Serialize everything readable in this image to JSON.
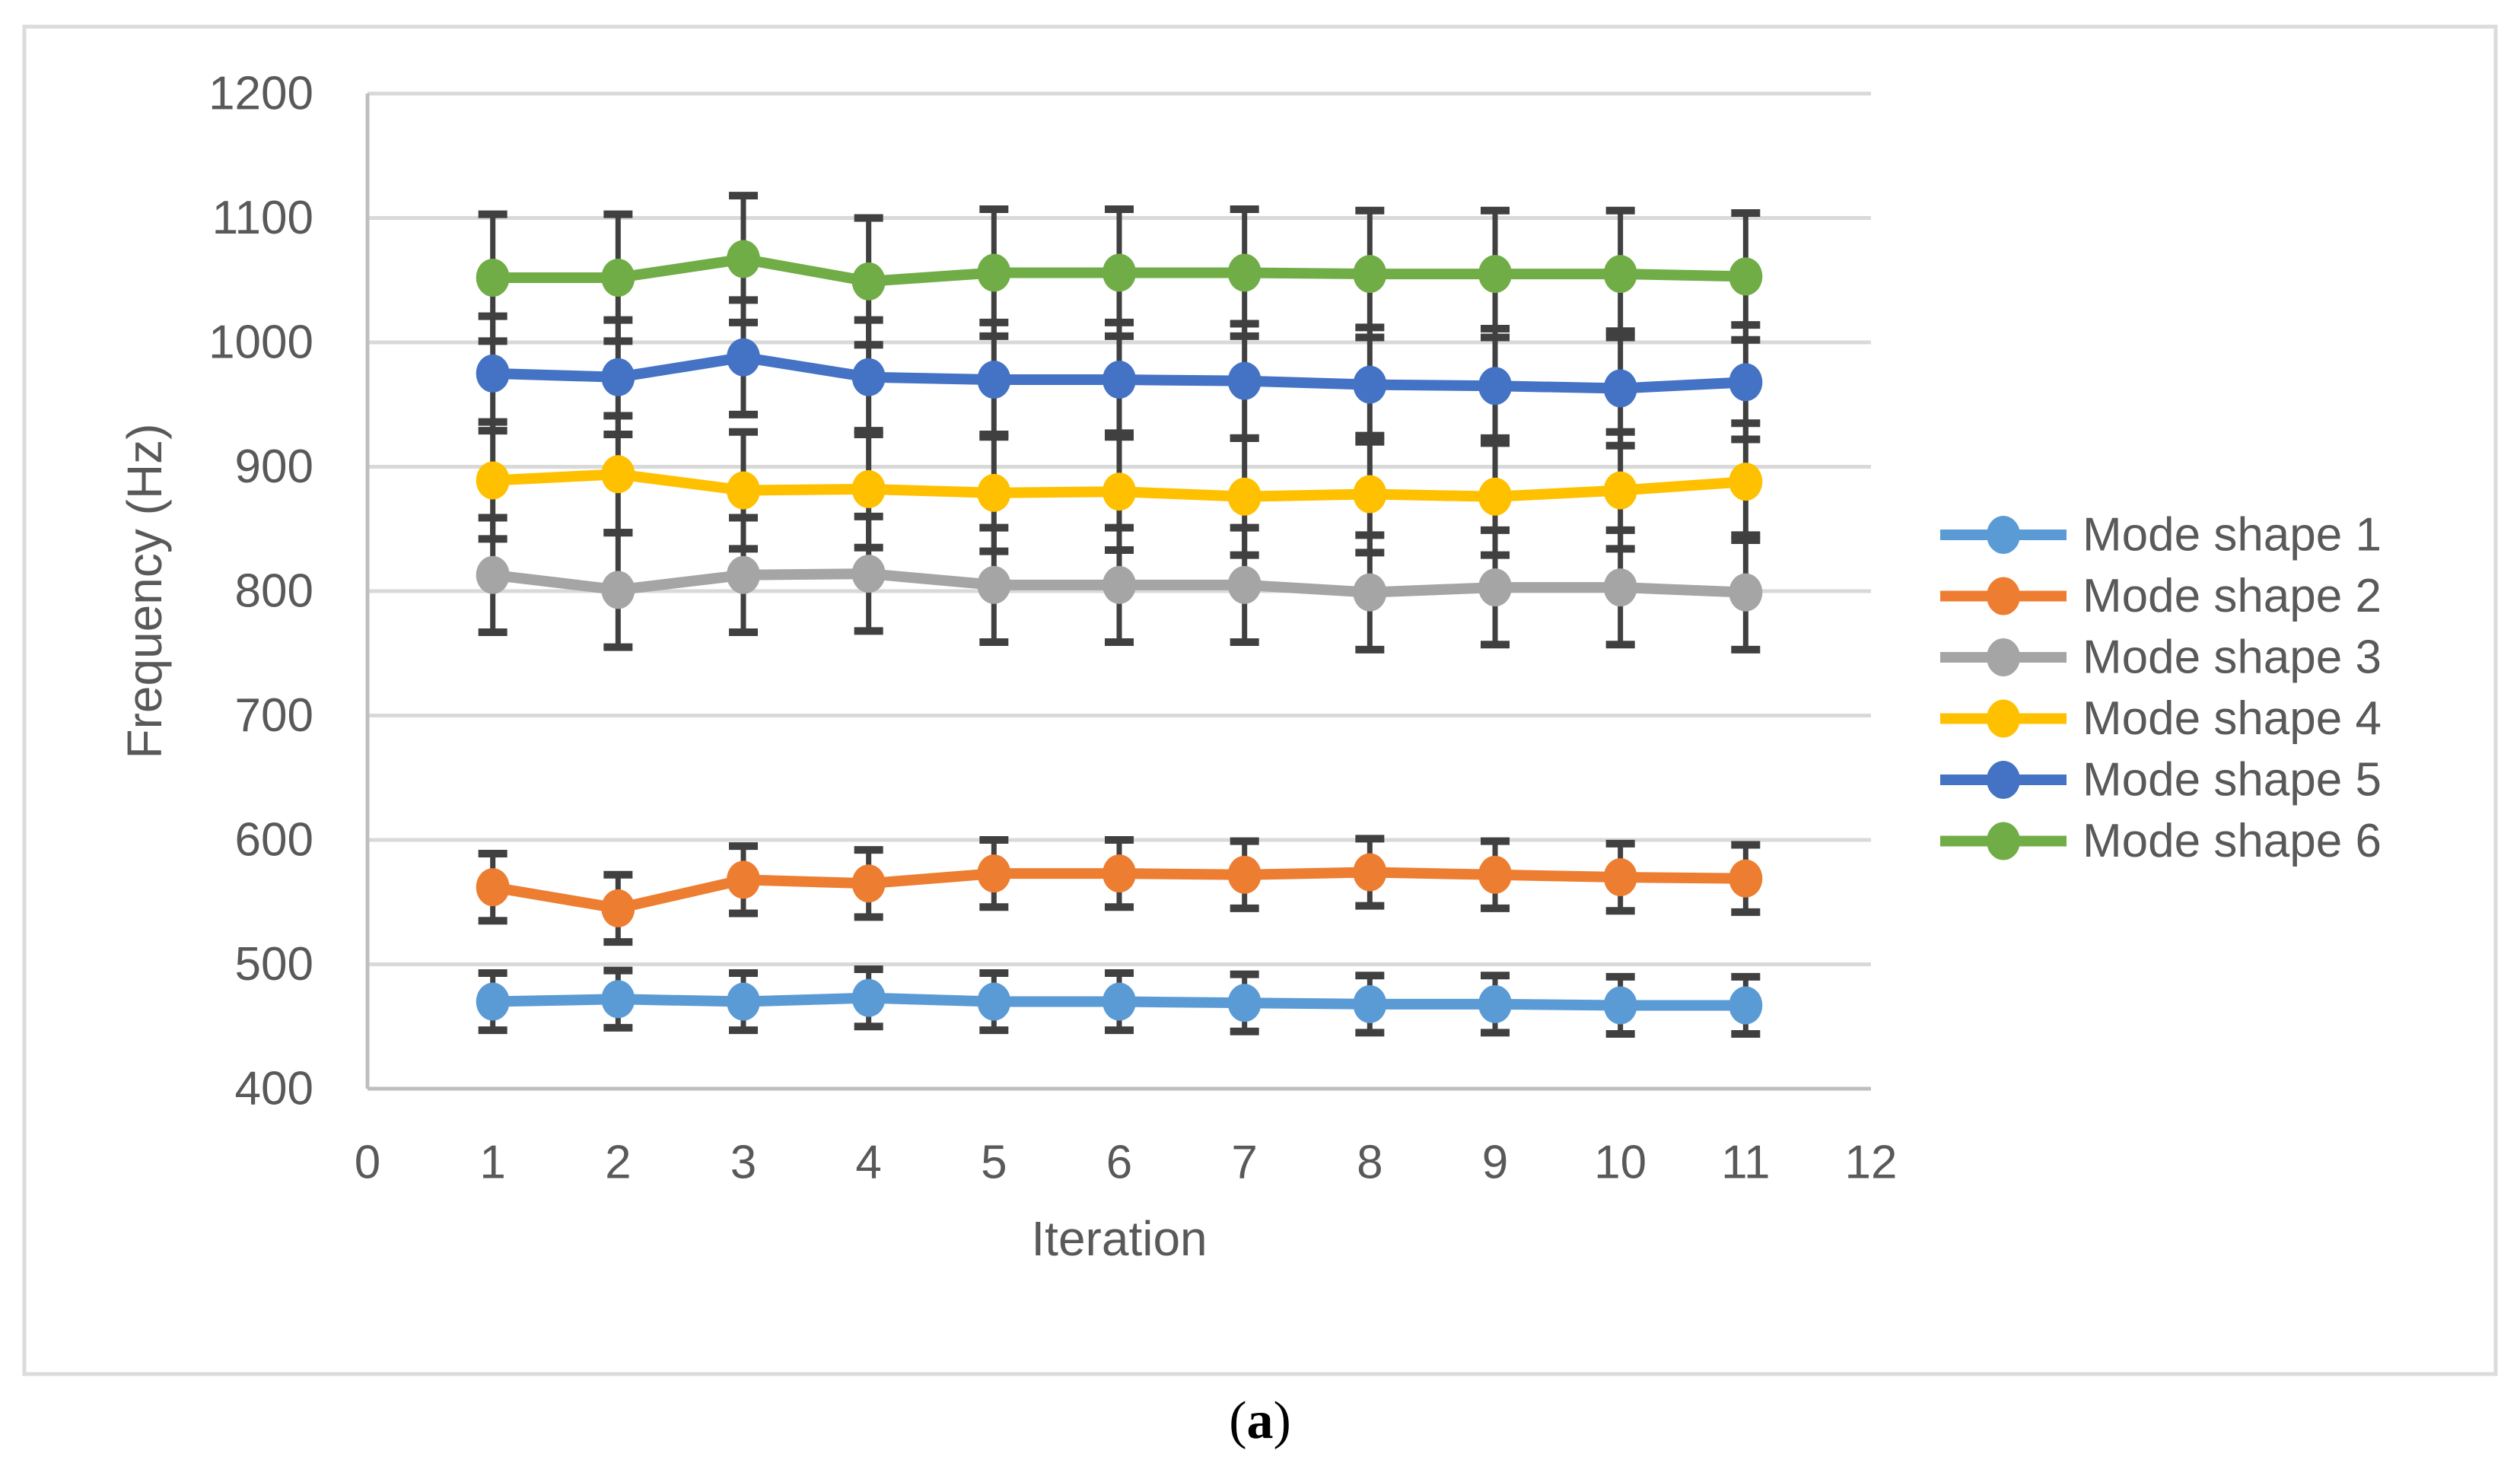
{
  "chart_data": {
    "type": "line",
    "title": "",
    "xlabel": "Iteration",
    "ylabel": "Frequency (Hz)",
    "x": [
      1,
      2,
      3,
      4,
      5,
      6,
      7,
      8,
      9,
      10,
      11
    ],
    "xlim": [
      0,
      12
    ],
    "ylim": [
      400,
      1200
    ],
    "x_ticks": [
      0,
      1,
      2,
      3,
      4,
      5,
      6,
      7,
      8,
      9,
      10,
      11,
      12
    ],
    "y_ticks": [
      400,
      500,
      600,
      700,
      800,
      900,
      1000,
      1100,
      1200
    ],
    "grid": true,
    "legend_position": "right",
    "error_bars": "symmetric, per-series constant, with end caps",
    "series": [
      {
        "name": "Mode shape 1",
        "color": "#5B9BD5",
        "error": 23,
        "values": [
          470,
          472,
          470,
          473,
          470,
          470,
          469,
          468,
          468,
          467,
          467
        ]
      },
      {
        "name": "Mode shape 2",
        "color": "#ED7D31",
        "error": 27,
        "values": [
          562,
          545,
          568,
          565,
          573,
          573,
          572,
          574,
          572,
          570,
          569
        ]
      },
      {
        "name": "Mode shape 3",
        "color": "#A5A5A5",
        "error": 46,
        "values": [
          813,
          801,
          813,
          814,
          805,
          805,
          805,
          799,
          803,
          803,
          799
        ]
      },
      {
        "name": "Mode shape 4",
        "color": "#FFC000",
        "error": 47,
        "values": [
          889,
          894,
          881,
          882,
          879,
          880,
          876,
          878,
          876,
          881,
          888
        ]
      },
      {
        "name": "Mode shape 5",
        "color": "#4472C4",
        "error": 46,
        "values": [
          975,
          972,
          988,
          972,
          970,
          970,
          969,
          966,
          965,
          963,
          968
        ]
      },
      {
        "name": "Mode shape 6",
        "color": "#70AD47",
        "error": 51,
        "values": [
          1052,
          1052,
          1067,
          1049,
          1056,
          1056,
          1056,
          1055,
          1055,
          1055,
          1053
        ]
      }
    ]
  },
  "panel_label": {
    "open": "(",
    "letter": "a",
    "close": ")"
  },
  "colors": {
    "gridline": "#D9D9D9",
    "axis_line": "#BFBFBF",
    "error_bar": "#404040",
    "tick_text": "#595959",
    "figure_border": "#DBDBDB"
  }
}
